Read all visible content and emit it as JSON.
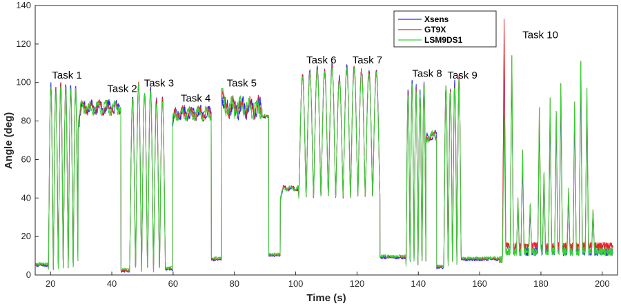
{
  "chart_data": {
    "type": "line",
    "xlabel": "Time (s)",
    "ylabel": "Angle (deg)",
    "xlim": [
      15,
      205
    ],
    "ylim": [
      0,
      140
    ],
    "xticks": [
      20,
      40,
      60,
      80,
      100,
      120,
      140,
      160,
      180,
      200
    ],
    "yticks": [
      0,
      20,
      40,
      60,
      80,
      100,
      120,
      140
    ],
    "grid": false,
    "legend_position": "top-right",
    "series": [
      {
        "name": "Xsens",
        "color": "#2a2ae6"
      },
      {
        "name": "GT9X",
        "color": "#e0282a"
      },
      {
        "name": "LSM9DS1",
        "color": "#35d335"
      }
    ],
    "annotations": [
      {
        "text": "Task 1",
        "x": 20.5,
        "y": 102
      },
      {
        "text": "Task 2",
        "x": 38.5,
        "y": 95
      },
      {
        "text": "Task 3",
        "x": 50.5,
        "y": 98
      },
      {
        "text": "Task 4",
        "x": 62.5,
        "y": 90
      },
      {
        "text": "Task 5",
        "x": 77.5,
        "y": 98
      },
      {
        "text": "Task 6",
        "x": 103.5,
        "y": 110
      },
      {
        "text": "Task 7",
        "x": 118.5,
        "y": 110
      },
      {
        "text": "Task 8",
        "x": 138,
        "y": 103
      },
      {
        "text": "Task 9",
        "x": 149.5,
        "y": 102
      },
      {
        "text": "Task 10",
        "x": 174,
        "y": 123
      }
    ],
    "segments": [
      {
        "type": "flat",
        "x0": 15,
        "x1": 19.3,
        "base": 5
      },
      {
        "type": "osc",
        "x0": 19.3,
        "x1": 29,
        "base": 3,
        "peaks": [
          99,
          97,
          100,
          99,
          98,
          98
        ]
      },
      {
        "type": "noisy",
        "x0": 29,
        "x1": 43,
        "base": 87,
        "spread": 4,
        "start": 78
      },
      {
        "type": "flat",
        "x0": 43,
        "x1": 45.8,
        "base": 2
      },
      {
        "type": "osc",
        "x0": 45.8,
        "x1": 57.5,
        "base": 2,
        "peaks": [
          92,
          100,
          95,
          97,
          91,
          92
        ]
      },
      {
        "type": "flat",
        "x0": 57.5,
        "x1": 59.8,
        "base": 3
      },
      {
        "type": "noisy",
        "x0": 59.8,
        "x1": 72.5,
        "base": 84,
        "spread": 4,
        "start": 79
      },
      {
        "type": "flat",
        "x0": 72.5,
        "x1": 75.8,
        "base": 8
      },
      {
        "type": "noisy",
        "x0": 75.8,
        "x1": 89,
        "base": 87,
        "spread": 6,
        "start": 95
      },
      {
        "type": "flat",
        "x0": 89,
        "x1": 91.2,
        "base": 82
      },
      {
        "type": "flat",
        "x0": 91.2,
        "x1": 95,
        "base": 10
      },
      {
        "type": "noisy",
        "x0": 95,
        "x1": 101,
        "base": 45,
        "spread": 1.5,
        "start": 40
      },
      {
        "type": "osc",
        "x0": 101,
        "x1": 127.5,
        "base": 40,
        "peaks": [
          104,
          106,
          108,
          106,
          109,
          103,
          108,
          108,
          107,
          106,
          106
        ]
      },
      {
        "type": "flat",
        "x0": 127.5,
        "x1": 136,
        "base": 9
      },
      {
        "type": "osc",
        "x0": 136,
        "x1": 142.5,
        "base": 5,
        "peaks": [
          96,
          101,
          98,
          95,
          100
        ]
      },
      {
        "type": "noisy",
        "x0": 142.5,
        "x1": 146,
        "base": 72,
        "spread": 3,
        "start": 70
      },
      {
        "type": "flat",
        "x0": 146,
        "x1": 148.3,
        "base": 4
      },
      {
        "type": "osc",
        "x0": 148.3,
        "x1": 154,
        "base": 4,
        "peaks": [
          98,
          96,
          100,
          103
        ]
      },
      {
        "type": "flat",
        "x0": 154,
        "x1": 166.5,
        "base": 8
      },
      {
        "type": "spiky",
        "x0": 166.5,
        "x1": 203.5,
        "base": 8,
        "spikes": [
          [
            168,
            133
          ],
          [
            170.5,
            118
          ],
          [
            172.5,
            40
          ],
          [
            174,
            65
          ],
          [
            176.5,
            38
          ],
          [
            179.5,
            90
          ],
          [
            181,
            55
          ],
          [
            183,
            92
          ],
          [
            185,
            88
          ],
          [
            186.5,
            103
          ],
          [
            189,
            45
          ],
          [
            191,
            93
          ],
          [
            193,
            115
          ],
          [
            195,
            97
          ],
          [
            197,
            35
          ]
        ]
      }
    ]
  }
}
